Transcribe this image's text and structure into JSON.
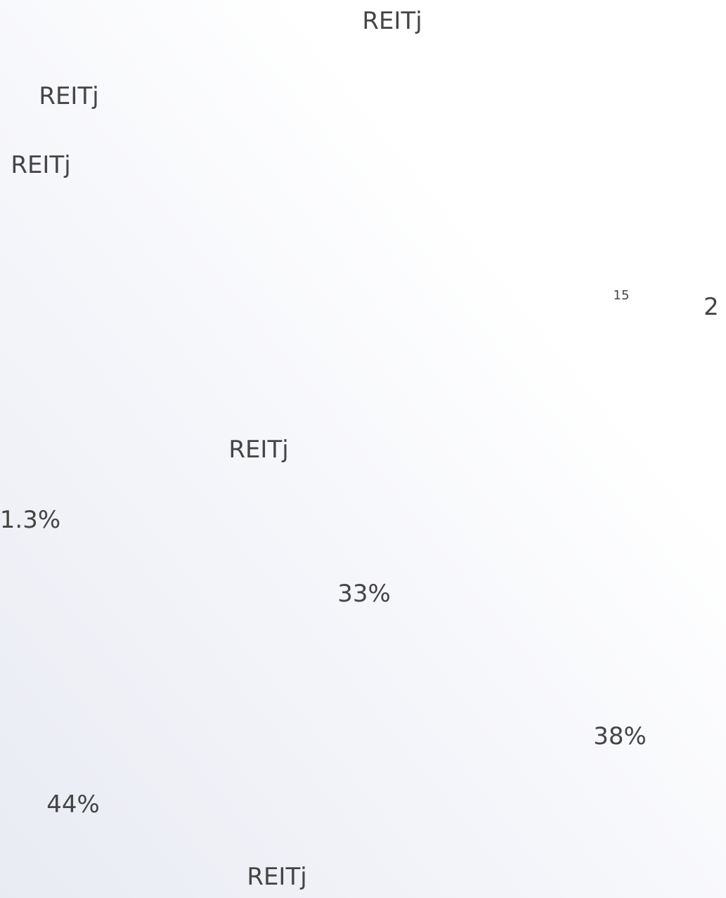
{
  "labels": [
    "REITj",
    "REITj",
    "REITj",
    "15",
    "2",
    "REITj",
    "1.3%",
    "33%",
    "38%",
    "44%",
    "REITj"
  ]
}
